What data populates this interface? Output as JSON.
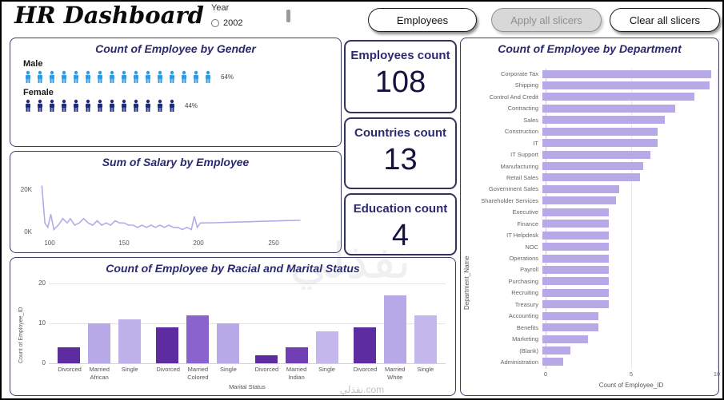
{
  "header": {
    "title": "HR Dashboard",
    "year_label": "Year",
    "year_option": "2002",
    "buttons": {
      "employees": "Employees",
      "apply": "Apply all slicers",
      "clear": "Clear all slicers"
    }
  },
  "cards": [
    {
      "title": "Employees count",
      "value": "108"
    },
    {
      "title": "Countries count",
      "value": "13"
    },
    {
      "title": "Education count",
      "value": "4"
    }
  ],
  "chart_data": [
    {
      "id": "gender",
      "type": "bar",
      "title": "Count of Employee by Gender",
      "categories": [
        "Male",
        "Female"
      ],
      "values": [
        64,
        44
      ],
      "unit": "%",
      "rows": [
        {
          "label": "Male",
          "icon_count": 16,
          "percent_label": "64%",
          "icon_color": "#2e9be5"
        },
        {
          "label": "Female",
          "icon_count": 13,
          "percent_label": "44%",
          "icon_color": "#1f2d7b"
        }
      ]
    },
    {
      "id": "salary",
      "type": "line",
      "title": "Sum of Salary by Employee",
      "y_ticks": [
        "20K",
        "0K"
      ],
      "x_ticks": [
        100,
        150,
        200,
        250
      ],
      "x_range": [
        90,
        272
      ],
      "y_axis_max_k": 25,
      "line_color": "#b6abe8",
      "points": [
        [
          95,
          22
        ],
        [
          97,
          5
        ],
        [
          99,
          3
        ],
        [
          101,
          9
        ],
        [
          103,
          2
        ],
        [
          106,
          4
        ],
        [
          109,
          7
        ],
        [
          112,
          5
        ],
        [
          114,
          7
        ],
        [
          117,
          4
        ],
        [
          120,
          5
        ],
        [
          123,
          7
        ],
        [
          126,
          5
        ],
        [
          129,
          4
        ],
        [
          132,
          6
        ],
        [
          135,
          4
        ],
        [
          138,
          5
        ],
        [
          141,
          4
        ],
        [
          144,
          6
        ],
        [
          147,
          5
        ],
        [
          150,
          5
        ],
        [
          153,
          4
        ],
        [
          156,
          4
        ],
        [
          159,
          3
        ],
        [
          162,
          4
        ],
        [
          165,
          3
        ],
        [
          168,
          4
        ],
        [
          171,
          3
        ],
        [
          174,
          4
        ],
        [
          177,
          3
        ],
        [
          180,
          4
        ],
        [
          183,
          3
        ],
        [
          186,
          3
        ],
        [
          189,
          2
        ],
        [
          192,
          3
        ],
        [
          195,
          2
        ],
        [
          197,
          8
        ],
        [
          199,
          3
        ],
        [
          201,
          5
        ],
        [
          210,
          5.1
        ],
        [
          220,
          5.3
        ],
        [
          230,
          5.5
        ],
        [
          240,
          5.7
        ],
        [
          250,
          5.9
        ],
        [
          260,
          6.1
        ],
        [
          268,
          6.2
        ]
      ]
    },
    {
      "id": "racial_marital",
      "type": "bar",
      "title": "Count of Employee by Racial and Marital Status",
      "y_label": "Count of Employee_ID",
      "x_label": "Marital Status",
      "y_ticks": [
        20,
        10,
        0
      ],
      "y_max": 20,
      "groups": [
        {
          "racial": "African",
          "bars": [
            {
              "marital": "Divorced",
              "value": 4,
              "color": "#5c2ca0"
            },
            {
              "marital": "Married",
              "value": 10,
              "color": "#b7a9e8"
            },
            {
              "marital": "Single",
              "value": 11,
              "color": "#beb1ea"
            }
          ]
        },
        {
          "racial": "Colored",
          "bars": [
            {
              "marital": "Divorced",
              "value": 9,
              "color": "#5c2ca0"
            },
            {
              "marital": "Married",
              "value": 12,
              "color": "#8a63cd"
            },
            {
              "marital": "Single",
              "value": 10,
              "color": "#b7a9e8"
            }
          ]
        },
        {
          "racial": "Indian",
          "bars": [
            {
              "marital": "Divorced",
              "value": 2,
              "color": "#5c2ca0"
            },
            {
              "marital": "Married",
              "value": 4,
              "color": "#6f3fb3"
            },
            {
              "marital": "Single",
              "value": 8,
              "color": "#c3b7ec"
            }
          ]
        },
        {
          "racial": "White",
          "bars": [
            {
              "marital": "Divorced",
              "value": 9,
              "color": "#5c2ca0"
            },
            {
              "marital": "Married",
              "value": 17,
              "color": "#b7a9e8"
            },
            {
              "marital": "Single",
              "value": 12,
              "color": "#c3b7ec"
            }
          ]
        }
      ]
    },
    {
      "id": "department",
      "type": "bar",
      "title": "Count of Employee by Department",
      "x_label": "Count of Employee_ID",
      "y_label": "Department_Name",
      "x_ticks": [
        0,
        5,
        10
      ],
      "x_max": 10,
      "bar_color": "#b7a9e8",
      "items": [
        {
          "name": "Corporate Tax",
          "value": 9.7
        },
        {
          "name": "Shipping",
          "value": 9.6
        },
        {
          "name": "Control And Credit",
          "value": 8.7
        },
        {
          "name": "Contracting",
          "value": 7.6
        },
        {
          "name": "Sales",
          "value": 7.0
        },
        {
          "name": "Construction",
          "value": 6.6
        },
        {
          "name": "IT",
          "value": 6.6
        },
        {
          "name": "IT Support",
          "value": 6.2
        },
        {
          "name": "Manufacturing",
          "value": 5.8
        },
        {
          "name": "Retail Sales",
          "value": 5.6
        },
        {
          "name": "Government Sales",
          "value": 4.4
        },
        {
          "name": "Shareholder Services",
          "value": 4.2
        },
        {
          "name": "Executive",
          "value": 3.8
        },
        {
          "name": "Finance",
          "value": 3.8
        },
        {
          "name": "IT Helpdesk",
          "value": 3.8
        },
        {
          "name": "NOC",
          "value": 3.8
        },
        {
          "name": "Operations",
          "value": 3.8
        },
        {
          "name": "Payroll",
          "value": 3.8
        },
        {
          "name": "Purchasing",
          "value": 3.8
        },
        {
          "name": "Recruiting",
          "value": 3.8
        },
        {
          "name": "Treasury",
          "value": 3.8
        },
        {
          "name": "Accounting",
          "value": 3.2
        },
        {
          "name": "Benefits",
          "value": 3.2
        },
        {
          "name": "Marketing",
          "value": 2.6
        },
        {
          "name": "(Blank)",
          "value": 1.6
        },
        {
          "name": "Administration",
          "value": 1.2
        }
      ]
    }
  ],
  "watermark": {
    "center": "نفذلي",
    "bottom": "نفذلي.com"
  }
}
